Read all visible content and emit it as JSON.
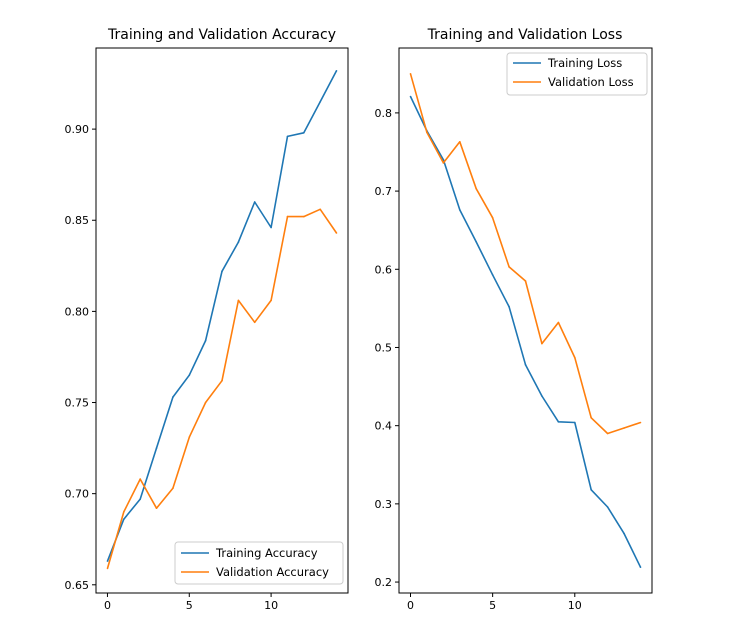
{
  "chart_data": [
    {
      "type": "line",
      "title": "Training and Validation Accuracy",
      "xlabel": "",
      "ylabel": "",
      "x": [
        0,
        1,
        2,
        3,
        4,
        5,
        6,
        7,
        8,
        9,
        10,
        11,
        12,
        13,
        14
      ],
      "xticks": [
        0,
        5,
        10
      ],
      "yticks": [
        0.65,
        0.7,
        0.75,
        0.8,
        0.85,
        0.9
      ],
      "ytick_labels": [
        "0.65",
        "0.70",
        "0.75",
        "0.80",
        "0.85",
        "0.90"
      ],
      "xlim": [
        -0.7,
        14.7
      ],
      "ylim": [
        0.6455,
        0.9445
      ],
      "legend": "lower-right",
      "grid": false,
      "series": [
        {
          "name": "Training Accuracy",
          "color": "#1f77b4",
          "values": [
            0.663,
            0.686,
            0.697,
            0.725,
            0.753,
            0.765,
            0.784,
            0.822,
            0.838,
            0.86,
            0.846,
            0.896,
            0.898,
            0.915,
            0.932
          ]
        },
        {
          "name": "Validation Accuracy",
          "color": "#ff7f0e",
          "values": [
            0.659,
            0.69,
            0.708,
            0.692,
            0.703,
            0.731,
            0.75,
            0.762,
            0.806,
            0.794,
            0.806,
            0.852,
            0.852,
            0.856,
            0.843
          ]
        }
      ]
    },
    {
      "type": "line",
      "title": "Training and Validation Loss",
      "xlabel": "",
      "ylabel": "",
      "x": [
        0,
        1,
        2,
        3,
        4,
        5,
        6,
        7,
        8,
        9,
        10,
        11,
        12,
        13,
        14
      ],
      "xticks": [
        0,
        5,
        10
      ],
      "yticks": [
        0.2,
        0.3,
        0.4,
        0.5,
        0.6,
        0.7,
        0.8
      ],
      "ytick_labels": [
        "0.2",
        "0.3",
        "0.4",
        "0.5",
        "0.6",
        "0.7",
        "0.8"
      ],
      "xlim": [
        -0.7,
        14.7
      ],
      "ylim": [
        0.186,
        0.883
      ],
      "legend": "upper-right",
      "grid": false,
      "series": [
        {
          "name": "Training Loss",
          "color": "#1f77b4",
          "values": [
            0.821,
            0.777,
            0.74,
            0.676,
            0.635,
            0.593,
            0.552,
            0.478,
            0.438,
            0.405,
            0.404,
            0.318,
            0.296,
            0.262,
            0.219
          ]
        },
        {
          "name": "Validation Loss",
          "color": "#ff7f0e",
          "values": [
            0.85,
            0.775,
            0.736,
            0.763,
            0.703,
            0.666,
            0.603,
            0.585,
            0.505,
            0.532,
            0.487,
            0.41,
            0.39,
            0.397,
            0.404
          ]
        }
      ]
    }
  ]
}
